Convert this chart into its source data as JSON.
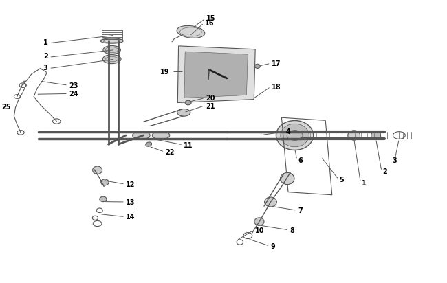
{
  "bg_color": "#ffffff",
  "line_color": "#555555",
  "label_color": "#000000",
  "fig_width": 6.5,
  "fig_height": 4.12,
  "dpi": 100
}
